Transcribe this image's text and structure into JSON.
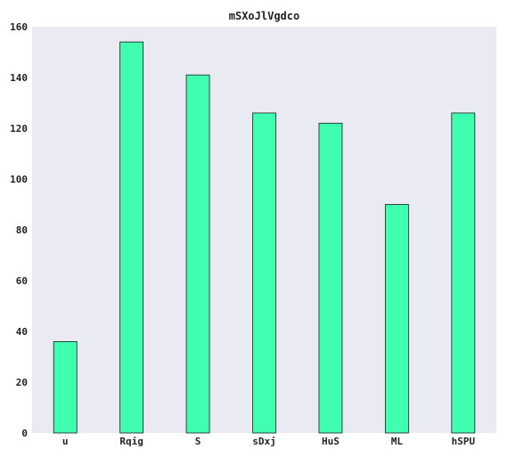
{
  "chart_data": {
    "type": "bar",
    "title": "mSXoJlVgdco",
    "xlabel": "",
    "ylabel": "",
    "categories": [
      "u",
      "Rqig",
      "S",
      "sDxj",
      "HuS",
      "ML",
      "hSPU"
    ],
    "values": [
      36,
      154,
      141,
      126,
      122,
      90,
      126
    ],
    "ylim": [
      0,
      160
    ],
    "yticks": [
      0,
      20,
      40,
      60,
      80,
      100,
      120,
      140,
      160
    ],
    "grid": false,
    "legend": "none",
    "colors": {
      "bar_fill": "#40ffb0",
      "bar_edge": "#1a1a1a",
      "plot_background": "#eaeaf2"
    }
  }
}
